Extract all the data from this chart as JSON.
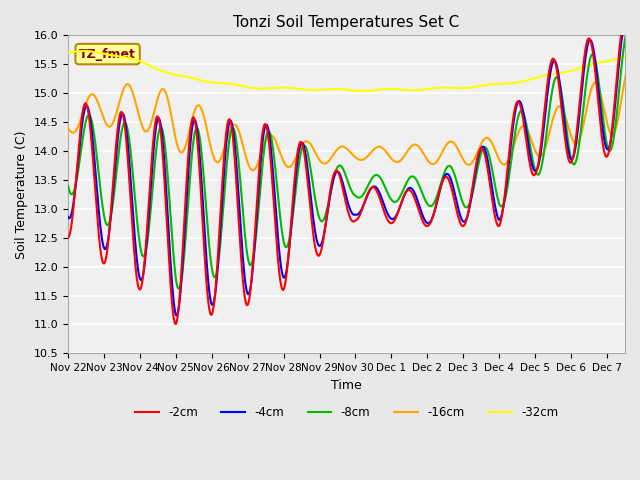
{
  "title": "Tonzi Soil Temperatures Set C",
  "xlabel": "Time",
  "ylabel": "Soil Temperature (C)",
  "ylim": [
    10.5,
    16.0
  ],
  "xlim": [
    0,
    15.5
  ],
  "tick_labels": [
    "Nov 22",
    "Nov 23",
    "Nov 24",
    "Nov 25",
    "Nov 26",
    "Nov 27",
    "Nov 28",
    "Nov 29",
    "Nov 30",
    "Dec 1",
    "Dec 2",
    "Dec 3",
    "Dec 4",
    "Dec 5",
    "Dec 6",
    "Dec 7"
  ],
  "annotation_text": "TZ_fmet",
  "annotation_color": "#8B0000",
  "annotation_bg": "#FFFF99",
  "annotation_border": "#B8860B",
  "colors": {
    "-2cm": "#FF0000",
    "-4cm": "#0000FF",
    "-8cm": "#00BB00",
    "-16cm": "#FFA500",
    "-32cm": "#FFFF00"
  },
  "legend_entries": [
    "-2cm",
    "-4cm",
    "-8cm",
    "-16cm",
    "-32cm"
  ],
  "bg_color": "#E8E8E8",
  "plot_bg": "#F0F0F0",
  "grid_color": "#FFFFFF",
  "linewidth": 1.5
}
